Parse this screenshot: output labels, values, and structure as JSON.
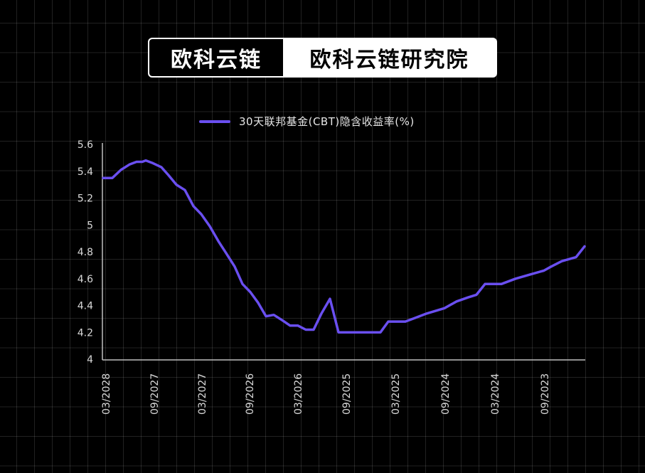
{
  "brand": {
    "left_label": "欧科云链",
    "right_label": "欧科云链研究院"
  },
  "legend": {
    "series_label": "30天联邦基金(CBT)隐含收益率(%)",
    "color": "#6a4ff0"
  },
  "colors": {
    "background": "#000000",
    "line": "#6a4ff0",
    "axis": "#bfbfbf",
    "text": "#d9d9d9"
  },
  "axis": {
    "y_ticks": [
      "5.6",
      "5.4",
      "5.2",
      "5",
      "4.8",
      "4.6",
      "4.4",
      "4.2",
      "4"
    ],
    "x_ticks": [
      "03/2028",
      "09/2027",
      "03/2027",
      "09/2026",
      "03/2026",
      "09/2025",
      "03/2025",
      "09/2024",
      "03/2024",
      "09/2023"
    ]
  },
  "chart_data": {
    "type": "line",
    "title": "",
    "legend": [
      "30天联邦基金(CBT)隐含收益率(%)"
    ],
    "legend_position": "top",
    "xlabel": "",
    "ylabel": "",
    "ylim": [
      4,
      5.6
    ],
    "grid": false,
    "x_tick_labels": [
      "03/2028",
      "09/2027",
      "03/2027",
      "09/2026",
      "03/2026",
      "09/2025",
      "03/2025",
      "09/2024",
      "03/2024",
      "09/2023"
    ],
    "x_order_note": "x axis runs from 03/2028 (left) to after 09/2023 (right)",
    "series": [
      {
        "name": "30天联邦基金(CBT)隐含收益率(%)",
        "color": "#6a4ff0",
        "values": [
          5.35,
          5.35,
          5.41,
          5.45,
          5.47,
          5.47,
          5.48,
          5.46,
          5.43,
          5.37,
          5.3,
          5.26,
          5.14,
          5.08,
          4.99,
          4.88,
          4.79,
          4.69,
          4.56,
          4.5,
          4.42,
          4.32,
          4.33,
          4.29,
          4.25,
          4.25,
          4.22,
          4.22,
          4.34,
          4.45,
          4.2,
          4.2,
          4.2,
          4.2,
          4.28,
          4.28,
          4.31,
          4.34,
          4.38,
          4.43,
          4.46,
          4.48,
          4.56,
          4.56,
          4.6,
          4.63,
          4.66,
          4.69,
          4.73,
          4.76,
          4.84
        ]
      }
    ]
  }
}
